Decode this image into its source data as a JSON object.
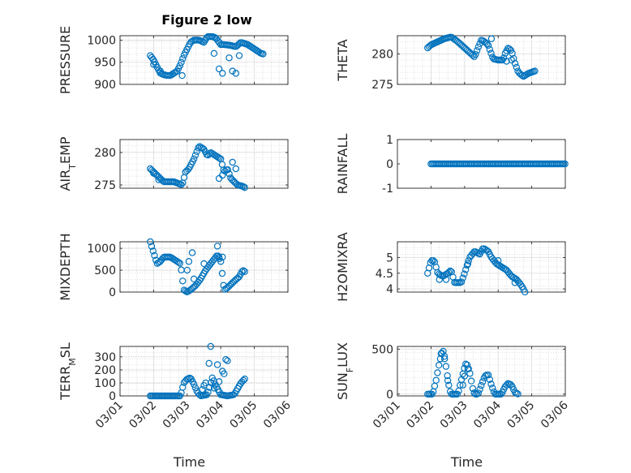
{
  "figure": {
    "title": "Figure 2 low",
    "colors": {
      "marker": "#0072BD",
      "grid": "#c8c8c8",
      "axis": "#262626",
      "background": "#ffffff"
    }
  },
  "chart_data": [
    {
      "id": "pressure",
      "type": "scatter",
      "title": "Figure 2 low",
      "ylabel": "PRESSURE",
      "xlabel": "",
      "ylim": [
        900,
        1010
      ],
      "yticks": [
        900,
        950,
        1000
      ],
      "xlim": [
        0,
        5
      ],
      "xticks": [
        0,
        1,
        2,
        3,
        4,
        5
      ],
      "xtick_labels": [],
      "grid": true,
      "anchors": [
        [
          0.9,
          965
        ],
        [
          1.0,
          955
        ],
        [
          1.1,
          940
        ],
        [
          1.2,
          925
        ],
        [
          1.3,
          922
        ],
        [
          1.4,
          920
        ],
        [
          1.5,
          920
        ],
        [
          1.6,
          925
        ],
        [
          1.7,
          930
        ],
        [
          1.8,
          945
        ],
        [
          1.9,
          965
        ],
        [
          2.0,
          980
        ],
        [
          2.1,
          995
        ],
        [
          2.2,
          1000
        ],
        [
          2.35,
          1000
        ],
        [
          2.5,
          995
        ],
        [
          2.6,
          1008
        ],
        [
          2.75,
          1008
        ],
        [
          2.85,
          1005
        ],
        [
          3.0,
          990
        ],
        [
          3.1,
          990
        ],
        [
          3.3,
          988
        ],
        [
          3.45,
          985
        ],
        [
          3.6,
          995
        ],
        [
          3.8,
          990
        ],
        [
          4.0,
          980
        ],
        [
          4.2,
          970
        ],
        [
          4.3,
          968
        ]
      ],
      "extra": [
        [
          1.0,
          945
        ],
        [
          1.2,
          930
        ],
        [
          1.85,
          920
        ],
        [
          2.95,
          935
        ],
        [
          3.05,
          925
        ],
        [
          3.35,
          930
        ],
        [
          3.45,
          925
        ],
        [
          3.55,
          965
        ],
        [
          3.25,
          960
        ],
        [
          2.8,
          970
        ]
      ],
      "sample_step": 0.042
    },
    {
      "id": "theta",
      "type": "scatter",
      "ylabel": "THETA",
      "xlabel": "",
      "ylim": [
        275,
        283
      ],
      "yticks": [
        275,
        280
      ],
      "xlim": [
        0,
        5
      ],
      "xticks": [
        0,
        1,
        2,
        3,
        4,
        5
      ],
      "xtick_labels": [],
      "grid": true,
      "anchors": [
        [
          0.9,
          281.0
        ],
        [
          1.0,
          281.5
        ],
        [
          1.2,
          282.0
        ],
        [
          1.4,
          282.5
        ],
        [
          1.6,
          282.8
        ],
        [
          1.8,
          282.0
        ],
        [
          2.0,
          281.0
        ],
        [
          2.2,
          280.0
        ],
        [
          2.3,
          279.5
        ],
        [
          2.4,
          281.0
        ],
        [
          2.5,
          282.3
        ],
        [
          2.6,
          282.0
        ],
        [
          2.7,
          281.5
        ],
        [
          2.85,
          279.2
        ],
        [
          3.0,
          279.0
        ],
        [
          3.15,
          279.0
        ],
        [
          3.2,
          280.0
        ],
        [
          3.3,
          281.0
        ],
        [
          3.4,
          280.5
        ],
        [
          3.5,
          278.5
        ],
        [
          3.6,
          277.0
        ],
        [
          3.75,
          276.3
        ],
        [
          3.9,
          276.8
        ],
        [
          4.1,
          277.2
        ]
      ],
      "extra": [
        [
          2.8,
          282.5
        ],
        [
          3.4,
          279.0
        ],
        [
          3.25,
          278.8
        ]
      ],
      "sample_step": 0.042
    },
    {
      "id": "air_temp",
      "type": "scatter",
      "ylabel_main": "AIR",
      "ylabel_sub": "T",
      "ylabel_rest": "EMP",
      "xlabel": "",
      "ylim": [
        274.5,
        282
      ],
      "yticks": [
        275,
        280
      ],
      "xlim": [
        0,
        5
      ],
      "xticks": [
        0,
        1,
        2,
        3,
        4,
        5
      ],
      "xtick_labels": [],
      "grid": true,
      "anchors": [
        [
          0.9,
          277.5
        ],
        [
          1.0,
          277.0
        ],
        [
          1.1,
          276.5
        ],
        [
          1.2,
          276.0
        ],
        [
          1.3,
          275.5
        ],
        [
          1.5,
          275.5
        ],
        [
          1.6,
          275.5
        ],
        [
          1.7,
          275.3
        ],
        [
          1.85,
          275.0
        ],
        [
          1.95,
          277.0
        ],
        [
          2.05,
          277.5
        ],
        [
          2.2,
          279.0
        ],
        [
          2.35,
          281.0
        ],
        [
          2.5,
          280.5
        ],
        [
          2.6,
          279.5
        ],
        [
          2.7,
          280.0
        ],
        [
          2.85,
          279.5
        ],
        [
          3.0,
          279.0
        ],
        [
          3.1,
          277.0
        ],
        [
          3.2,
          277.5
        ],
        [
          3.3,
          276.0
        ],
        [
          3.4,
          275.5
        ],
        [
          3.5,
          275.0
        ],
        [
          3.65,
          274.8
        ],
        [
          3.75,
          274.5
        ]
      ],
      "extra": [
        [
          2.95,
          276.0
        ],
        [
          3.05,
          276.5
        ],
        [
          3.35,
          278.5
        ],
        [
          3.45,
          277.5
        ],
        [
          1.0,
          276.8
        ],
        [
          1.15,
          275.8
        ]
      ],
      "sample_step": 0.042
    },
    {
      "id": "rainfall",
      "type": "scatter",
      "ylabel": "RAINFALL",
      "xlabel": "",
      "ylim": [
        -1,
        1
      ],
      "yticks": [
        -1,
        0,
        1
      ],
      "xlim": [
        0,
        5
      ],
      "xticks": [
        0,
        1,
        2,
        3,
        4,
        5
      ],
      "xtick_labels": [],
      "grid": false,
      "anchors": [
        [
          1.0,
          0
        ],
        [
          5.0,
          0
        ]
      ],
      "extra": [],
      "sample_step": 0.042
    },
    {
      "id": "mixdepth",
      "type": "scatter",
      "ylabel": "MIXDEPTH",
      "xlabel": "",
      "ylim": [
        0,
        1150
      ],
      "yticks": [
        0,
        500,
        1000
      ],
      "xlim": [
        0,
        5
      ],
      "xticks": [
        0,
        1,
        2,
        3,
        4,
        5
      ],
      "xtick_labels": [],
      "grid": true,
      "anchors": [
        [
          0.9,
          1150
        ],
        [
          1.0,
          900
        ],
        [
          1.1,
          650
        ],
        [
          1.2,
          700
        ],
        [
          1.3,
          800
        ],
        [
          1.5,
          800
        ],
        [
          1.6,
          750
        ],
        [
          1.7,
          700
        ],
        [
          1.8,
          650
        ],
        [
          1.9,
          50
        ],
        [
          2.0,
          0
        ],
        [
          2.1,
          50
        ],
        [
          2.25,
          150
        ],
        [
          2.4,
          300
        ],
        [
          2.55,
          500
        ],
        [
          2.65,
          600
        ],
        [
          2.75,
          700
        ],
        [
          2.9,
          850
        ],
        [
          3.0,
          700
        ],
        [
          3.1,
          50
        ],
        [
          3.2,
          100
        ],
        [
          3.4,
          250
        ],
        [
          3.55,
          350
        ],
        [
          3.65,
          500
        ],
        [
          3.75,
          450
        ]
      ],
      "extra": [
        [
          2.0,
          500
        ],
        [
          2.05,
          700
        ],
        [
          2.15,
          900
        ],
        [
          2.2,
          300
        ],
        [
          2.9,
          1050
        ],
        [
          2.95,
          800
        ],
        [
          3.05,
          800
        ],
        [
          2.5,
          650
        ]
      ],
      "sample_step": 0.042
    },
    {
      "id": "h2omixra",
      "type": "scatter",
      "ylabel": "H2OMIXRA",
      "xlabel": "",
      "ylim": [
        3.9,
        5.5
      ],
      "yticks": [
        4,
        4.5,
        5
      ],
      "xlim": [
        0,
        5
      ],
      "xticks": [
        0,
        1,
        2,
        3,
        4,
        5
      ],
      "xtick_labels": [],
      "grid": true,
      "anchors": [
        [
          0.9,
          4.5
        ],
        [
          1.0,
          4.9
        ],
        [
          1.1,
          4.9
        ],
        [
          1.2,
          4.5
        ],
        [
          1.35,
          4.4
        ],
        [
          1.5,
          4.5
        ],
        [
          1.6,
          4.6
        ],
        [
          1.7,
          4.2
        ],
        [
          1.9,
          4.2
        ],
        [
          2.0,
          4.5
        ],
        [
          2.15,
          5.0
        ],
        [
          2.3,
          5.2
        ],
        [
          2.45,
          5.1
        ],
        [
          2.55,
          5.3
        ],
        [
          2.7,
          5.2
        ],
        [
          2.8,
          5.0
        ],
        [
          2.95,
          4.8
        ],
        [
          3.1,
          4.7
        ],
        [
          3.25,
          4.6
        ],
        [
          3.4,
          4.4
        ],
        [
          3.55,
          4.3
        ],
        [
          3.7,
          4.1
        ],
        [
          3.8,
          3.9
        ]
      ],
      "extra": [
        [
          1.25,
          4.3
        ],
        [
          1.45,
          4.3
        ],
        [
          2.1,
          4.8
        ],
        [
          3.0,
          4.9
        ],
        [
          3.5,
          4.2
        ]
      ],
      "sample_step": 0.042
    },
    {
      "id": "terr_msl",
      "type": "scatter",
      "ylabel_main": "TERR",
      "ylabel_sub": "M",
      "ylabel_rest": "SL",
      "xlabel": "Time",
      "ylim": [
        0,
        380
      ],
      "yticks": [
        0,
        100,
        200,
        300
      ],
      "xlim": [
        0,
        5
      ],
      "xticks": [
        0,
        1,
        2,
        3,
        4,
        5
      ],
      "xtick_labels": [
        "03/01",
        "03/02",
        "03/03",
        "03/04",
        "03/05",
        "03/06"
      ],
      "grid": true,
      "anchors": [
        [
          0.9,
          0
        ],
        [
          1.8,
          0
        ],
        [
          1.9,
          100
        ],
        [
          2.0,
          130
        ],
        [
          2.1,
          140
        ],
        [
          2.2,
          90
        ],
        [
          2.3,
          30
        ],
        [
          2.4,
          0
        ],
        [
          2.6,
          10
        ],
        [
          2.75,
          140
        ],
        [
          2.85,
          80
        ],
        [
          3.0,
          10
        ],
        [
          3.2,
          0
        ],
        [
          3.4,
          10
        ],
        [
          3.6,
          100
        ],
        [
          3.75,
          140
        ]
      ],
      "extra": [
        [
          2.45,
          50
        ],
        [
          2.5,
          80
        ],
        [
          2.55,
          100
        ],
        [
          2.65,
          250
        ],
        [
          2.7,
          380
        ],
        [
          2.9,
          240
        ],
        [
          3.05,
          190
        ],
        [
          3.1,
          170
        ],
        [
          3.15,
          280
        ],
        [
          3.2,
          270
        ],
        [
          2.95,
          110
        ],
        [
          2.8,
          60
        ]
      ],
      "sample_step": 0.042
    },
    {
      "id": "sun_flux",
      "type": "scatter",
      "ylabel_main": "SUN",
      "ylabel_sub": "F",
      "ylabel_rest": "LUX",
      "xlabel": "Time",
      "ylim": [
        -20,
        530
      ],
      "yticks": [
        0,
        500
      ],
      "xlim": [
        0,
        5
      ],
      "xticks": [
        0,
        1,
        2,
        3,
        4,
        5
      ],
      "xtick_labels": [
        "03/01",
        "03/02",
        "03/03",
        "03/04",
        "03/05",
        "03/06"
      ],
      "grid": true,
      "anchors": [
        [
          0.9,
          0
        ],
        [
          1.05,
          0
        ],
        [
          1.15,
          150
        ],
        [
          1.25,
          350
        ],
        [
          1.35,
          500
        ],
        [
          1.45,
          300
        ],
        [
          1.55,
          50
        ],
        [
          1.6,
          0
        ],
        [
          1.8,
          0
        ],
        [
          1.9,
          150
        ],
        [
          2.0,
          300
        ],
        [
          2.05,
          350
        ],
        [
          2.15,
          250
        ],
        [
          2.25,
          50
        ],
        [
          2.3,
          0
        ],
        [
          2.4,
          0
        ],
        [
          2.5,
          100
        ],
        [
          2.6,
          200
        ],
        [
          2.7,
          220
        ],
        [
          2.8,
          100
        ],
        [
          2.9,
          0
        ],
        [
          3.1,
          0
        ],
        [
          3.2,
          80
        ],
        [
          3.3,
          120
        ],
        [
          3.4,
          100
        ],
        [
          3.5,
          20
        ],
        [
          3.6,
          0
        ]
      ],
      "extra": [
        [
          1.3,
          450
        ],
        [
          1.4,
          420
        ],
        [
          1.5,
          150
        ],
        [
          2.0,
          200
        ],
        [
          2.1,
          280
        ],
        [
          1.95,
          100
        ]
      ],
      "sample_step": 0.042
    }
  ]
}
